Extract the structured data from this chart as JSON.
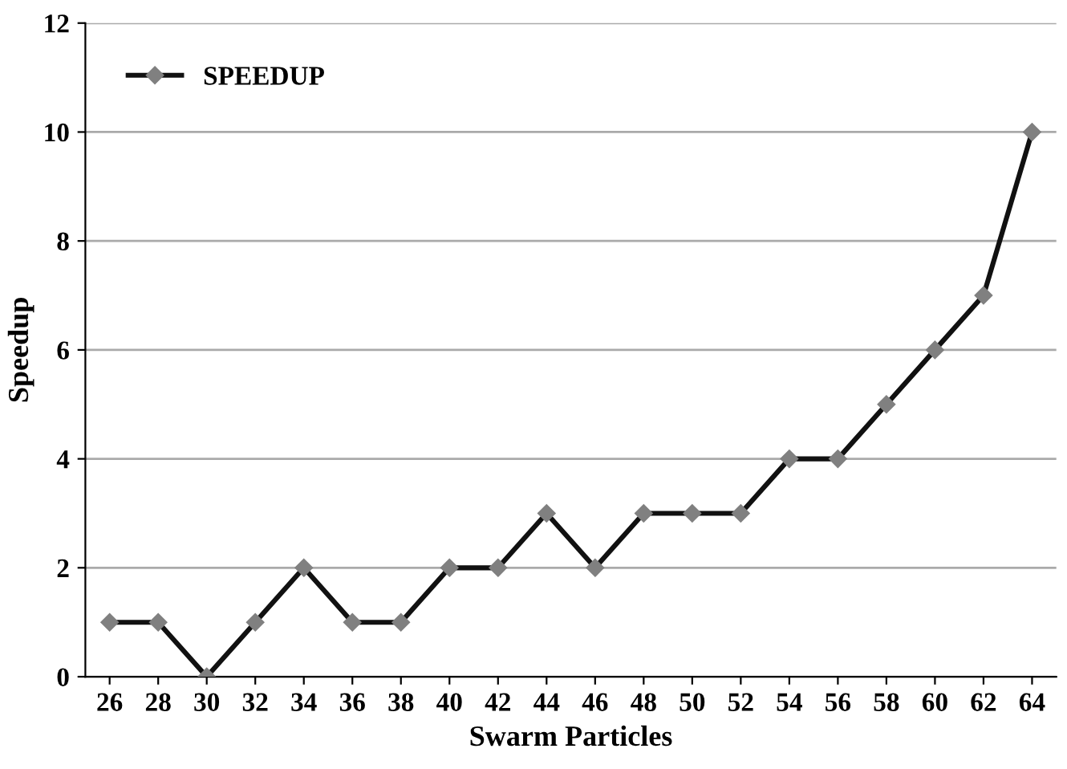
{
  "chart_data": {
    "type": "line",
    "xlabel": "Swarm Particles",
    "ylabel": "Speedup",
    "categories": [
      "26",
      "28",
      "30",
      "32",
      "34",
      "36",
      "38",
      "40",
      "42",
      "44",
      "46",
      "48",
      "50",
      "52",
      "54",
      "56",
      "58",
      "60",
      "62",
      "64"
    ],
    "series": [
      {
        "name": "SPEEDUP",
        "color": "#111111",
        "values": [
          1,
          1,
          0,
          1,
          2,
          1,
          1,
          2,
          2,
          3,
          2,
          3,
          3,
          3,
          4,
          4,
          5,
          6,
          7,
          10
        ]
      }
    ],
    "ylim": [
      0,
      12
    ],
    "yticks": [
      0,
      2,
      4,
      6,
      8,
      10,
      12
    ],
    "grid": "y",
    "legend": "top left",
    "marker": "diamond",
    "line_style": "solid"
  }
}
